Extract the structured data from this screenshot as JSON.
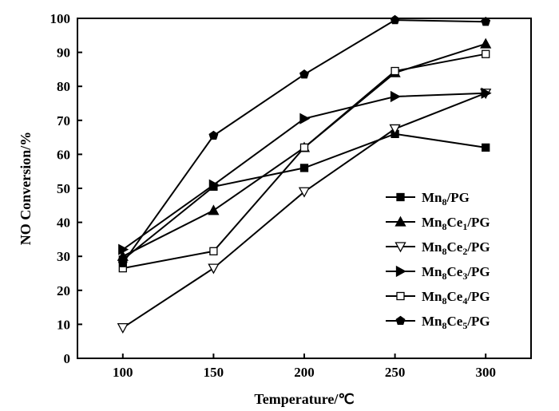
{
  "chart_data": {
    "type": "line",
    "xlabel": "Temperature/℃",
    "ylabel": "NO Conversion/%",
    "xlim": [
      75,
      325
    ],
    "ylim": [
      0,
      100
    ],
    "x": [
      100,
      150,
      200,
      250,
      300
    ],
    "x_ticks": [
      "100",
      "150",
      "200",
      "250",
      "300"
    ],
    "y_ticks": [
      "0",
      "10",
      "20",
      "30",
      "40",
      "50",
      "60",
      "70",
      "80",
      "90",
      "100"
    ],
    "legend_position": "lower-right",
    "grid": false,
    "series": [
      {
        "name": "Mn8/PG",
        "label_parts": [
          [
            "Mn",
            "n"
          ],
          [
            "8",
            "s"
          ],
          [
            "/PG",
            "n"
          ]
        ],
        "marker": "square-filled",
        "values": [
          29,
          50.5,
          56,
          66,
          62
        ]
      },
      {
        "name": "Mn8Ce1/PG",
        "label_parts": [
          [
            "Mn",
            "n"
          ],
          [
            "8",
            "s"
          ],
          [
            "Ce",
            "n"
          ],
          [
            "1",
            "s"
          ],
          [
            "/PG",
            "n"
          ]
        ],
        "marker": "triangle-up-filled",
        "values": [
          30,
          43.5,
          62,
          84,
          92.5
        ]
      },
      {
        "name": "Mn8Ce2/PG",
        "label_parts": [
          [
            "Mn",
            "n"
          ],
          [
            "8",
            "s"
          ],
          [
            "Ce",
            "n"
          ],
          [
            "2",
            "s"
          ],
          [
            "/PG",
            "n"
          ]
        ],
        "marker": "triangle-down-open",
        "values": [
          9,
          26.5,
          49,
          67.5,
          78
        ]
      },
      {
        "name": "Mn8Ce3/PG",
        "label_parts": [
          [
            "Mn",
            "n"
          ],
          [
            "8",
            "s"
          ],
          [
            "Ce",
            "n"
          ],
          [
            "3",
            "s"
          ],
          [
            "/PG",
            "n"
          ]
        ],
        "marker": "triangle-right-filled",
        "values": [
          32,
          51,
          70.5,
          77,
          78
        ]
      },
      {
        "name": "Mn8Ce4/PG",
        "label_parts": [
          [
            "Mn",
            "n"
          ],
          [
            "8",
            "s"
          ],
          [
            "Ce",
            "n"
          ],
          [
            "4",
            "s"
          ],
          [
            "/PG",
            "n"
          ]
        ],
        "marker": "square-open",
        "values": [
          26.5,
          31.5,
          62,
          84.5,
          89.5
        ]
      },
      {
        "name": "Mn8Ce5/PG",
        "label_parts": [
          [
            "Mn",
            "n"
          ],
          [
            "8",
            "s"
          ],
          [
            "Ce",
            "n"
          ],
          [
            "5",
            "s"
          ],
          [
            "/PG",
            "n"
          ]
        ],
        "marker": "pentagon-filled",
        "values": [
          28,
          65.5,
          83.5,
          99.5,
          99
        ]
      }
    ]
  }
}
